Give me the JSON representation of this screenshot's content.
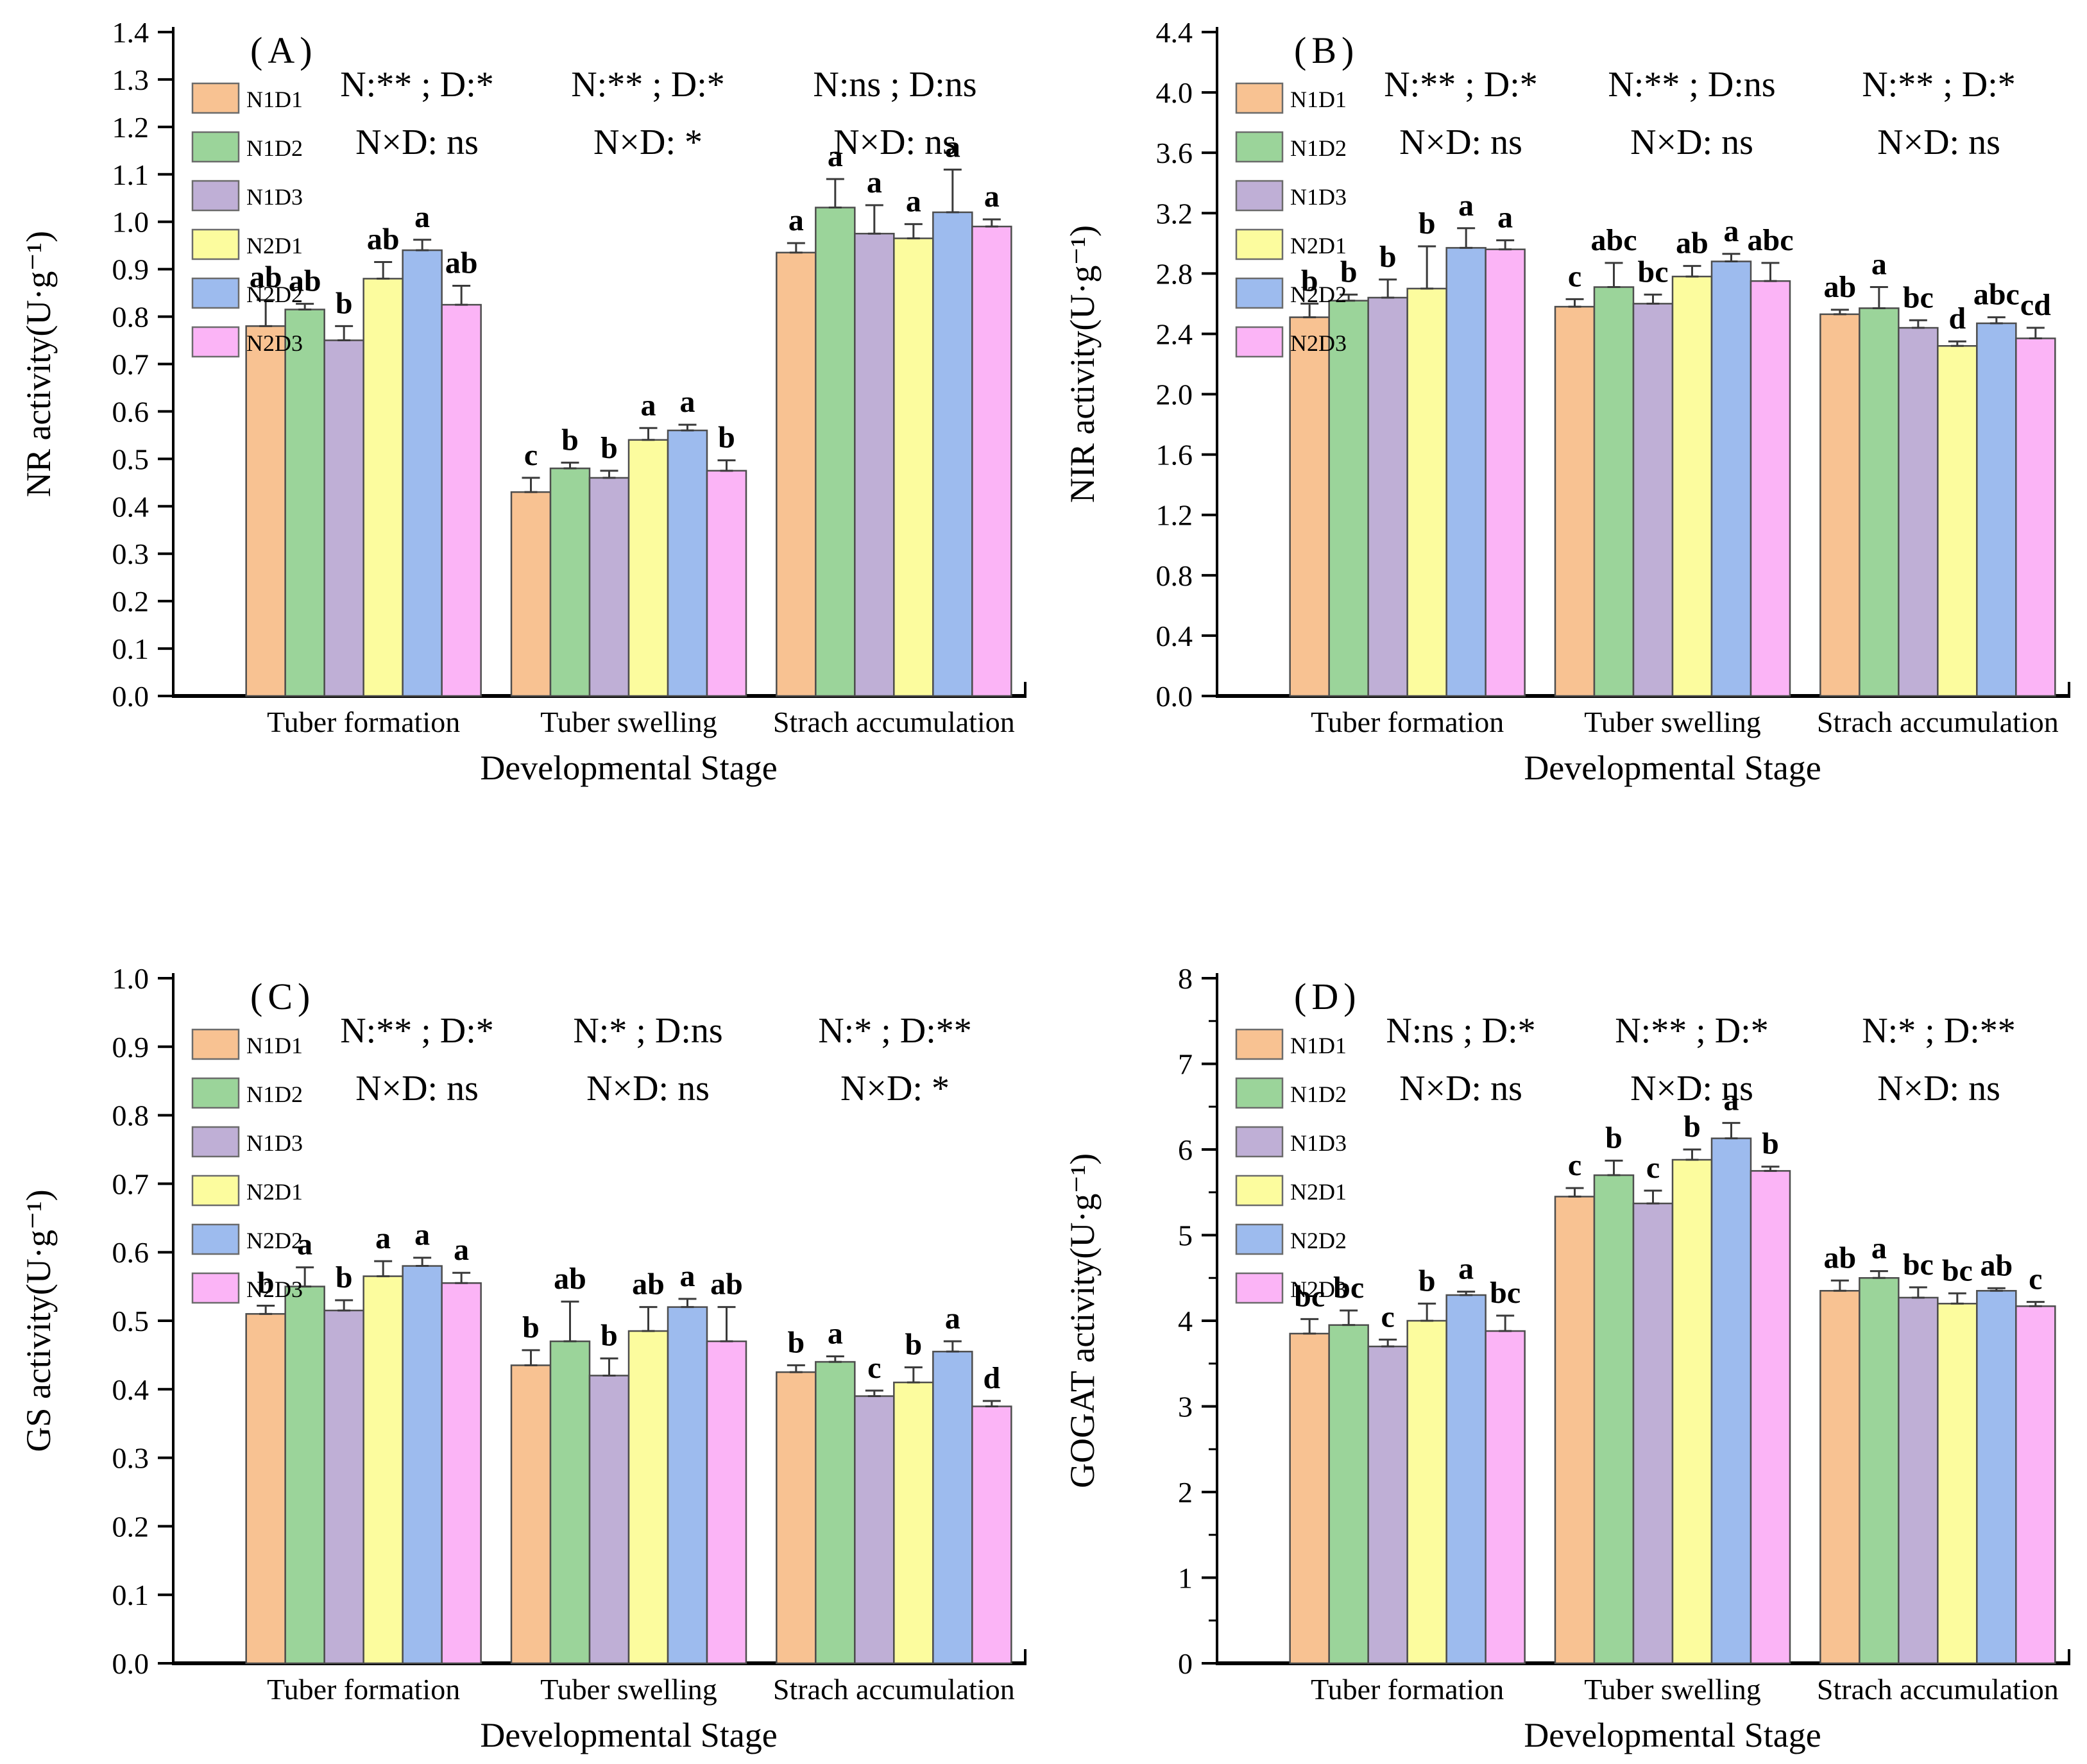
{
  "figure": {
    "background": "#ffffff",
    "x_axis_title": "Developmental  Stage",
    "legend": {
      "labels": [
        "N1D1",
        "N1D2",
        "N1D3",
        "N2D1",
        "N2D2",
        "N2D3"
      ]
    },
    "colors": {
      "series": [
        "#F8C292",
        "#9BD49A",
        "#BFAFD6",
        "#FCFC9E",
        "#9DBBEE",
        "#FBB4F6"
      ],
      "bar_edge": "#4d4d4d",
      "axis": "#000000",
      "error_bar": "#3a3a3a"
    }
  },
  "chart_data": {
    "type": "bar",
    "categories": [
      "Tuber formation",
      "Tuber swelling",
      "Strach accumulation"
    ],
    "series_labels": [
      "N1D1",
      "N1D2",
      "N1D3",
      "N2D1",
      "N2D2",
      "N2D3"
    ],
    "xlabel": "Developmental  Stage",
    "grid": false,
    "legend_position": "inside-top-left",
    "panels": [
      {
        "id": "A",
        "label": "(A)",
        "ylabel": "NR activity(U·g⁻¹)",
        "ylim": [
          0,
          1.4
        ],
        "ytick": 0.1,
        "decimals": 1,
        "minor_ticks": false,
        "annotations": [
          [
            "N:** ;  D:*",
            "N×D: ns"
          ],
          [
            "N:** ;  D:*",
            "N×D: *"
          ],
          [
            "N:ns ;  D:ns",
            "N×D: ns"
          ]
        ],
        "groups": [
          {
            "name": "Tuber formation",
            "values": [
              0.78,
              0.815,
              0.75,
              0.88,
              0.94,
              0.825
            ],
            "errors": [
              0.055,
              0.012,
              0.03,
              0.035,
              0.022,
              0.04
            ],
            "letters": [
              "ab",
              "ab",
              "b",
              "ab",
              "a",
              "ab"
            ]
          },
          {
            "name": "Tuber swelling",
            "values": [
              0.43,
              0.48,
              0.46,
              0.54,
              0.56,
              0.475
            ],
            "errors": [
              0.03,
              0.012,
              0.015,
              0.025,
              0.012,
              0.022
            ],
            "letters": [
              "c",
              "b",
              "b",
              "a",
              "a",
              "b"
            ]
          },
          {
            "name": "Strach accumulation",
            "values": [
              0.935,
              1.03,
              0.975,
              0.965,
              1.02,
              0.99
            ],
            "errors": [
              0.02,
              0.06,
              0.06,
              0.03,
              0.09,
              0.015
            ],
            "letters": [
              "a",
              "a",
              "a",
              "a",
              "a",
              "a"
            ]
          }
        ]
      },
      {
        "id": "B",
        "label": "(B)",
        "ylabel": "NIR activity(U·g⁻¹)",
        "ylim": [
          0,
          4.4
        ],
        "ytick": 0.4,
        "decimals": 1,
        "minor_ticks": false,
        "annotations": [
          [
            "N:** ;  D:*",
            "N×D: ns"
          ],
          [
            "N:** ;  D:ns",
            "N×D: ns"
          ],
          [
            "N:** ;  D:*",
            "N×D: ns"
          ]
        ],
        "groups": [
          {
            "name": "Tuber formation",
            "values": [
              2.51,
              2.62,
              2.64,
              2.7,
              2.97,
              2.96
            ],
            "errors": [
              0.09,
              0.04,
              0.12,
              0.28,
              0.13,
              0.06
            ],
            "letters": [
              "b",
              "b",
              "b",
              "b",
              "a",
              "a"
            ]
          },
          {
            "name": "Tuber swelling",
            "values": [
              2.58,
              2.71,
              2.6,
              2.78,
              2.88,
              2.75
            ],
            "errors": [
              0.05,
              0.16,
              0.06,
              0.07,
              0.05,
              0.12
            ],
            "letters": [
              "c",
              "abc",
              "bc",
              "ab",
              "a",
              "abc"
            ]
          },
          {
            "name": "Strach accumulation",
            "values": [
              2.53,
              2.57,
              2.44,
              2.32,
              2.47,
              2.37
            ],
            "errors": [
              0.03,
              0.14,
              0.05,
              0.03,
              0.04,
              0.07
            ],
            "letters": [
              "ab",
              "a",
              "bc",
              "d",
              "abc",
              "cd"
            ]
          }
        ]
      },
      {
        "id": "C",
        "label": "(C)",
        "ylabel": "GS activity(U·g⁻¹)",
        "ylim": [
          0,
          1.0
        ],
        "ytick": 0.1,
        "decimals": 1,
        "minor_ticks": false,
        "annotations": [
          [
            "N:** ;  D:*",
            "N×D: ns"
          ],
          [
            "N:* ;  D:ns",
            "N×D: ns"
          ],
          [
            "N:* ;  D:**",
            "N×D: *"
          ]
        ],
        "groups": [
          {
            "name": "Tuber formation",
            "values": [
              0.51,
              0.55,
              0.515,
              0.565,
              0.58,
              0.555
            ],
            "errors": [
              0.012,
              0.028,
              0.015,
              0.022,
              0.012,
              0.015
            ],
            "letters": [
              "b",
              "a",
              "b",
              "a",
              "a",
              "a"
            ]
          },
          {
            "name": "Tuber swelling",
            "values": [
              0.435,
              0.47,
              0.42,
              0.485,
              0.52,
              0.47
            ],
            "errors": [
              0.022,
              0.058,
              0.025,
              0.035,
              0.012,
              0.05
            ],
            "letters": [
              "b",
              "ab",
              "b",
              "ab",
              "a",
              "ab"
            ]
          },
          {
            "name": "Strach accumulation",
            "values": [
              0.425,
              0.44,
              0.39,
              0.41,
              0.455,
              0.375
            ],
            "errors": [
              0.01,
              0.008,
              0.008,
              0.022,
              0.015,
              0.008
            ],
            "letters": [
              "b",
              "a",
              "c",
              "b",
              "a",
              "d"
            ]
          }
        ]
      },
      {
        "id": "D",
        "label": "(D)",
        "ylabel": "GOGAT activity(U·g⁻¹)",
        "ylim": [
          0,
          8
        ],
        "ytick": 1,
        "decimals": 0,
        "minor_ticks": true,
        "annotations": [
          [
            "N:ns ;  D:*",
            "N×D: ns"
          ],
          [
            "N:** ;  D:*",
            "N×D: ns"
          ],
          [
            "N:* ;  D:**",
            "N×D: ns"
          ]
        ],
        "groups": [
          {
            "name": "Tuber formation",
            "values": [
              3.85,
              3.95,
              3.7,
              4.0,
              4.3,
              3.88
            ],
            "errors": [
              0.17,
              0.17,
              0.08,
              0.2,
              0.04,
              0.18
            ],
            "letters": [
              "bc",
              "bc",
              "c",
              "b",
              "a",
              "bc"
            ]
          },
          {
            "name": "Tuber swelling",
            "values": [
              5.45,
              5.7,
              5.37,
              5.88,
              6.13,
              5.75
            ],
            "errors": [
              0.1,
              0.17,
              0.15,
              0.12,
              0.18,
              0.05
            ],
            "letters": [
              "c",
              "b",
              "c",
              "b",
              "a",
              "b"
            ]
          },
          {
            "name": "Strach accumulation",
            "values": [
              4.35,
              4.5,
              4.27,
              4.2,
              4.35,
              4.17
            ],
            "errors": [
              0.12,
              0.08,
              0.12,
              0.12,
              0.03,
              0.05
            ],
            "letters": [
              "ab",
              "a",
              "bc",
              "bc",
              "ab",
              "c"
            ]
          }
        ]
      }
    ]
  }
}
